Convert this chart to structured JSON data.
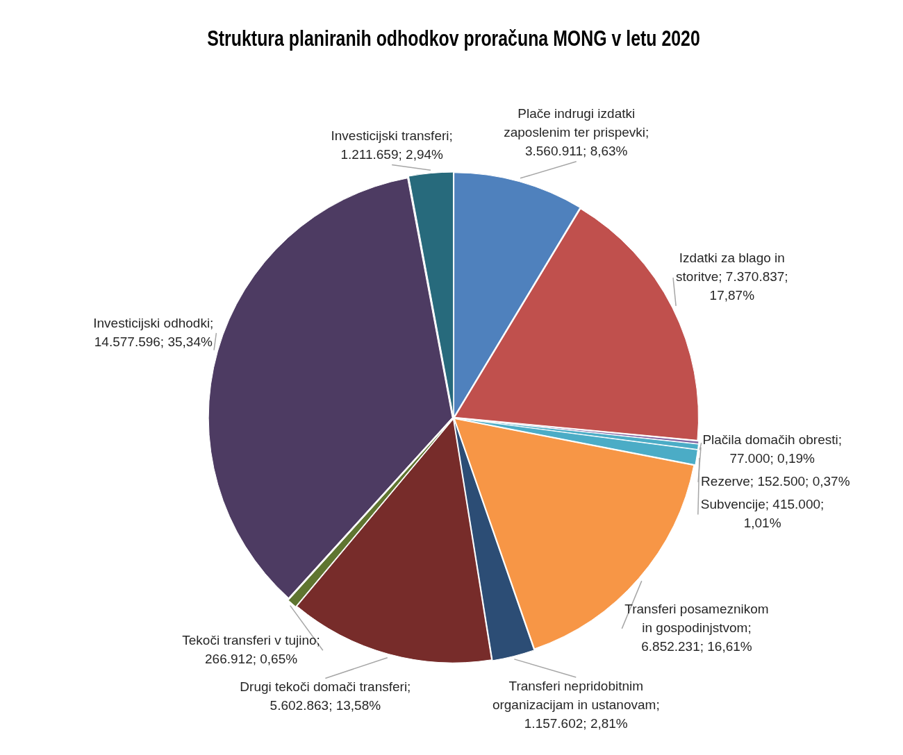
{
  "chart_data": {
    "type": "pie",
    "title": "Struktura planiranih odhodkov proračuna MONG v letu 2020",
    "categories": [
      "Plače indrugi izdatki zaposlenim ter prispevki",
      "Izdatki za blago in storitve",
      "Plačila domačih obresti",
      "Rezerve",
      "Subvencije",
      "Transferi posameznikom in gospodinjstvom",
      "Transferi nepridobitnim organizacijam in ustanovam",
      "Drugi tekoči domači transferi",
      "Tekoči transferi v tujino",
      "Investicijski odhodki",
      "Investicijski transferi"
    ],
    "values": [
      3560911,
      7370837,
      77000,
      152500,
      415000,
      6852231,
      1157602,
      5602863,
      266912,
      14577596,
      1211659
    ],
    "value_labels": [
      "; 3.560.911; 8,63%",
      "; 7.370.837; 17,87%",
      "; 77.000; 0,19%",
      "; 152.500; 0,37%",
      "; 415.000; 1,01%",
      "; 6.852.231; 16,61%",
      "; 1.157.602; 2,81%",
      "; 5.602.863; 13,58%",
      "; 266.912; 0,65%",
      "; 14.577.596; 35,34%",
      "; 1.211.659; 2,94%"
    ],
    "colors": [
      "#4f81bd",
      "#c0504d",
      "#8064a2",
      "#4bacc6",
      "#4bacc6",
      "#f79646",
      "#2c4d75",
      "#772c2a",
      "#5f7530",
      "#4d3b62",
      "#276a7c"
    ],
    "legend": false
  }
}
